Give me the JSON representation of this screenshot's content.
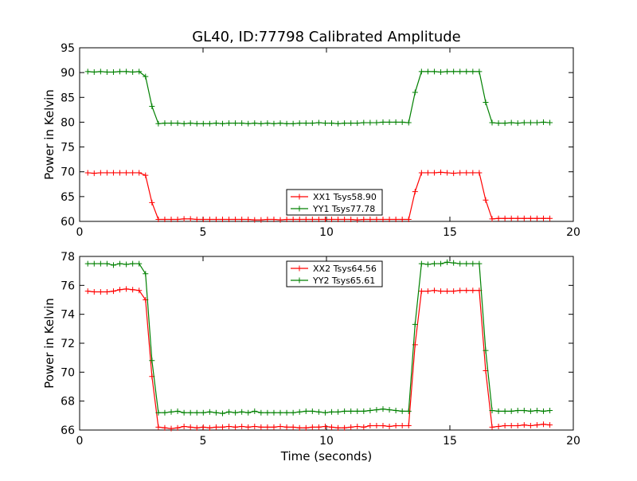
{
  "chart_data": {
    "title": "GL40, ID:77798 Calibrated Amplitude",
    "xlabel": "Time (seconds)",
    "panels": [
      {
        "type": "line",
        "ylabel": "Power in Kelvin",
        "xlim": [
          0,
          20
        ],
        "ylim": [
          60,
          95
        ],
        "xticks": [
          0,
          5,
          10,
          15,
          20
        ],
        "yticks": [
          60,
          65,
          70,
          75,
          80,
          85,
          90,
          95
        ],
        "legend_location": "lower-center",
        "series": [
          {
            "name": "XX1 Tsys58.90",
            "color": "#ff0000",
            "x": [
              0.33,
              0.59,
              0.85,
              1.11,
              1.37,
              1.63,
              1.89,
              2.15,
              2.41,
              2.67,
              2.93,
              3.19,
              3.45,
              3.71,
              3.97,
              4.23,
              4.49,
              4.75,
              5.01,
              5.27,
              5.53,
              5.79,
              6.05,
              6.31,
              6.57,
              6.83,
              7.09,
              7.35,
              7.61,
              7.87,
              8.13,
              8.39,
              8.65,
              8.91,
              9.17,
              9.43,
              9.69,
              9.95,
              10.21,
              10.47,
              10.73,
              10.99,
              11.25,
              11.51,
              11.77,
              12.03,
              12.29,
              12.55,
              12.81,
              13.07,
              13.33,
              13.59,
              13.85,
              14.11,
              14.37,
              14.63,
              14.89,
              15.15,
              15.41,
              15.67,
              15.93,
              16.19,
              16.45,
              16.71,
              16.97,
              17.23,
              17.49,
              17.75,
              18.01,
              18.27,
              18.53,
              18.79,
              19.05
            ],
            "y": [
              69.8,
              69.7,
              69.8,
              69.8,
              69.8,
              69.8,
              69.8,
              69.8,
              69.8,
              69.3,
              63.8,
              60.4,
              60.4,
              60.4,
              60.4,
              60.5,
              60.5,
              60.4,
              60.4,
              60.4,
              60.4,
              60.4,
              60.4,
              60.4,
              60.4,
              60.4,
              60.3,
              60.3,
              60.4,
              60.4,
              60.3,
              60.4,
              60.4,
              60.4,
              60.4,
              60.4,
              60.4,
              60.4,
              60.4,
              60.4,
              60.4,
              60.4,
              60.3,
              60.4,
              60.4,
              60.4,
              60.4,
              60.4,
              60.4,
              60.4,
              60.4,
              66.0,
              69.8,
              69.8,
              69.8,
              69.9,
              69.8,
              69.7,
              69.8,
              69.8,
              69.8,
              69.8,
              64.3,
              60.5,
              60.6,
              60.6,
              60.6,
              60.6,
              60.6,
              60.6,
              60.6,
              60.6,
              60.6
            ]
          },
          {
            "name": "YY1 Tsys77.78",
            "color": "#008000",
            "x": [
              0.33,
              0.59,
              0.85,
              1.11,
              1.37,
              1.63,
              1.89,
              2.15,
              2.41,
              2.67,
              2.93,
              3.19,
              3.45,
              3.71,
              3.97,
              4.23,
              4.49,
              4.75,
              5.01,
              5.27,
              5.53,
              5.79,
              6.05,
              6.31,
              6.57,
              6.83,
              7.09,
              7.35,
              7.61,
              7.87,
              8.13,
              8.39,
              8.65,
              8.91,
              9.17,
              9.43,
              9.69,
              9.95,
              10.21,
              10.47,
              10.73,
              10.99,
              11.25,
              11.51,
              11.77,
              12.03,
              12.29,
              12.55,
              12.81,
              13.07,
              13.33,
              13.59,
              13.85,
              14.11,
              14.37,
              14.63,
              14.89,
              15.15,
              15.41,
              15.67,
              15.93,
              16.19,
              16.45,
              16.71,
              16.97,
              17.23,
              17.49,
              17.75,
              18.01,
              18.27,
              18.53,
              18.79,
              19.05
            ],
            "y": [
              90.2,
              90.1,
              90.2,
              90.1,
              90.1,
              90.2,
              90.2,
              90.1,
              90.2,
              89.2,
              83.2,
              79.7,
              79.8,
              79.8,
              79.8,
              79.7,
              79.8,
              79.7,
              79.7,
              79.7,
              79.8,
              79.7,
              79.8,
              79.8,
              79.8,
              79.7,
              79.8,
              79.7,
              79.8,
              79.7,
              79.8,
              79.7,
              79.7,
              79.8,
              79.8,
              79.8,
              79.9,
              79.8,
              79.8,
              79.7,
              79.8,
              79.8,
              79.8,
              79.9,
              79.9,
              79.9,
              80.0,
              80.0,
              80.0,
              80.0,
              79.9,
              86.0,
              90.2,
              90.2,
              90.2,
              90.1,
              90.2,
              90.2,
              90.2,
              90.2,
              90.2,
              90.2,
              84.0,
              79.9,
              79.8,
              79.8,
              79.9,
              79.8,
              79.9,
              79.9,
              79.9,
              80.0,
              79.9
            ]
          }
        ]
      },
      {
        "type": "line",
        "ylabel": "Power in Kelvin",
        "xlim": [
          0,
          20
        ],
        "ylim": [
          66,
          78
        ],
        "xticks": [
          0,
          5,
          10,
          15,
          20
        ],
        "yticks": [
          66,
          68,
          70,
          72,
          74,
          76,
          78
        ],
        "legend_location": "upper-center",
        "series": [
          {
            "name": "XX2 Tsys64.56",
            "color": "#ff0000",
            "x": [
              0.33,
              0.59,
              0.85,
              1.11,
              1.37,
              1.63,
              1.89,
              2.15,
              2.41,
              2.67,
              2.93,
              3.19,
              3.45,
              3.71,
              3.97,
              4.23,
              4.49,
              4.75,
              5.01,
              5.27,
              5.53,
              5.79,
              6.05,
              6.31,
              6.57,
              6.83,
              7.09,
              7.35,
              7.61,
              7.87,
              8.13,
              8.39,
              8.65,
              8.91,
              9.17,
              9.43,
              9.69,
              9.95,
              10.21,
              10.47,
              10.73,
              10.99,
              11.25,
              11.51,
              11.77,
              12.03,
              12.29,
              12.55,
              12.81,
              13.07,
              13.33,
              13.59,
              13.85,
              14.11,
              14.37,
              14.63,
              14.89,
              15.15,
              15.41,
              15.67,
              15.93,
              16.19,
              16.45,
              16.71,
              16.97,
              17.23,
              17.49,
              17.75,
              18.01,
              18.27,
              18.53,
              18.79,
              19.05
            ],
            "y": [
              75.6,
              75.55,
              75.55,
              75.55,
              75.6,
              75.7,
              75.75,
              75.7,
              75.65,
              75.0,
              69.7,
              66.2,
              66.15,
              66.1,
              66.15,
              66.25,
              66.2,
              66.15,
              66.2,
              66.15,
              66.2,
              66.2,
              66.25,
              66.2,
              66.25,
              66.2,
              66.25,
              66.2,
              66.2,
              66.2,
              66.25,
              66.2,
              66.2,
              66.15,
              66.15,
              66.2,
              66.2,
              66.25,
              66.2,
              66.15,
              66.15,
              66.2,
              66.25,
              66.2,
              66.3,
              66.3,
              66.3,
              66.25,
              66.3,
              66.3,
              66.3,
              71.9,
              75.6,
              75.6,
              75.65,
              75.6,
              75.6,
              75.6,
              75.65,
              75.65,
              75.65,
              75.65,
              70.1,
              66.2,
              66.25,
              66.3,
              66.3,
              66.3,
              66.35,
              66.3,
              66.35,
              66.4,
              66.35
            ]
          },
          {
            "name": "YY2 Tsys65.61",
            "color": "#008000",
            "x": [
              0.33,
              0.59,
              0.85,
              1.11,
              1.37,
              1.63,
              1.89,
              2.15,
              2.41,
              2.67,
              2.93,
              3.19,
              3.45,
              3.71,
              3.97,
              4.23,
              4.49,
              4.75,
              5.01,
              5.27,
              5.53,
              5.79,
              6.05,
              6.31,
              6.57,
              6.83,
              7.09,
              7.35,
              7.61,
              7.87,
              8.13,
              8.39,
              8.65,
              8.91,
              9.17,
              9.43,
              9.69,
              9.95,
              10.21,
              10.47,
              10.73,
              10.99,
              11.25,
              11.51,
              11.77,
              12.03,
              12.29,
              12.55,
              12.81,
              13.07,
              13.33,
              13.59,
              13.85,
              14.11,
              14.37,
              14.63,
              14.89,
              15.15,
              15.41,
              15.67,
              15.93,
              16.19,
              16.45,
              16.71,
              16.97,
              17.23,
              17.49,
              17.75,
              18.01,
              18.27,
              18.53,
              18.79,
              19.05
            ],
            "y": [
              77.5,
              77.5,
              77.5,
              77.5,
              77.4,
              77.5,
              77.45,
              77.5,
              77.5,
              76.8,
              70.8,
              67.2,
              67.2,
              67.25,
              67.3,
              67.2,
              67.2,
              67.2,
              67.2,
              67.25,
              67.2,
              67.15,
              67.25,
              67.2,
              67.25,
              67.2,
              67.3,
              67.2,
              67.2,
              67.2,
              67.2,
              67.2,
              67.2,
              67.25,
              67.3,
              67.3,
              67.25,
              67.2,
              67.25,
              67.25,
              67.3,
              67.3,
              67.3,
              67.3,
              67.35,
              67.4,
              67.45,
              67.4,
              67.35,
              67.3,
              67.3,
              73.3,
              77.5,
              77.45,
              77.5,
              77.5,
              77.6,
              77.55,
              77.5,
              77.5,
              77.5,
              77.5,
              71.5,
              67.35,
              67.3,
              67.3,
              67.3,
              67.35,
              67.35,
              67.3,
              67.35,
              67.3,
              67.35
            ]
          }
        ]
      }
    ]
  }
}
